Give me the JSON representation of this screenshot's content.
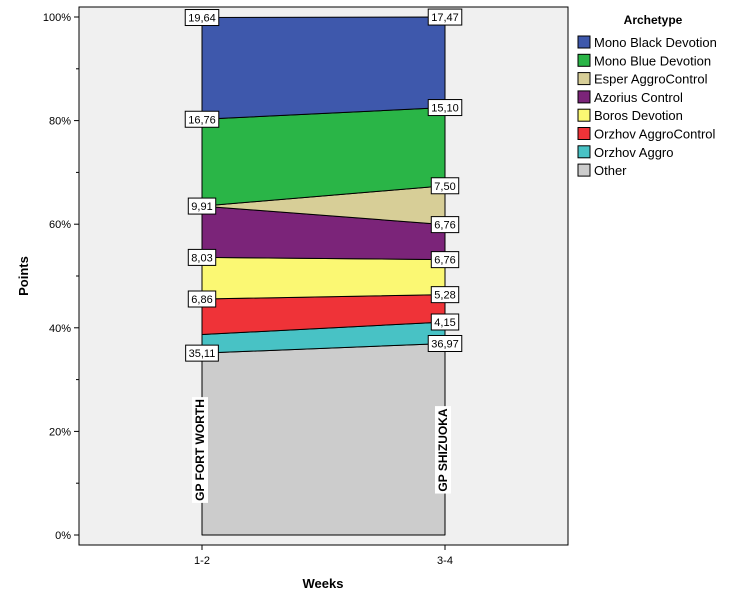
{
  "chart_data": {
    "type": "area",
    "stacking": "percent",
    "xlabel": "Weeks",
    "ylabel": "Points",
    "categories": [
      "1-2",
      "3-4"
    ],
    "group_labels": [
      "GP FORT WORTH",
      "GP SHIZUOKA"
    ],
    "ylim": [
      0,
      100
    ],
    "yticks": [
      "0%",
      "20%",
      "40%",
      "60%",
      "80%",
      "100%"
    ],
    "legend_title": "Archetype",
    "legend_position": "right",
    "grid": false,
    "series": [
      {
        "name": "Other",
        "color": "#cccccc",
        "values": [
          35.11,
          36.97
        ],
        "labels": [
          "35,11",
          "36,97"
        ]
      },
      {
        "name": "Orzhov Aggro",
        "color": "#48c2c5",
        "values": [
          3.59,
          4.15
        ],
        "labels": [
          "",
          "4,15"
        ]
      },
      {
        "name": "Orzhov AggroControl",
        "color": "#ef3338",
        "values": [
          6.86,
          5.28
        ],
        "labels": [
          "6,86",
          "5,28"
        ]
      },
      {
        "name": "Boros Devotion",
        "color": "#fbf873",
        "values": [
          8.03,
          6.76
        ],
        "labels": [
          "8,03",
          "6,76"
        ]
      },
      {
        "name": "Azorius Control",
        "color": "#7b2479",
        "values": [
          9.91,
          6.76
        ],
        "labels": [
          "9,91",
          "6,76"
        ]
      },
      {
        "name": "Esper AggroControl",
        "color": "#d7ce97",
        "values": [
          0,
          7.5
        ],
        "labels": [
          "",
          "7,50"
        ]
      },
      {
        "name": "Mono Blue Devotion",
        "color": "#2ab547",
        "values": [
          16.76,
          15.1
        ],
        "labels": [
          "16,76",
          "15,10"
        ]
      },
      {
        "name": "Mono Black Devotion",
        "color": "#3e58ac",
        "values": [
          19.64,
          17.47
        ],
        "labels": [
          "19,64",
          "17,47"
        ]
      }
    ],
    "legend_order": [
      "Mono Black Devotion",
      "Mono Blue Devotion",
      "Esper AggroControl",
      "Azorius Control",
      "Boros Devotion",
      "Orzhov AggroControl",
      "Orzhov Aggro",
      "Other"
    ]
  }
}
